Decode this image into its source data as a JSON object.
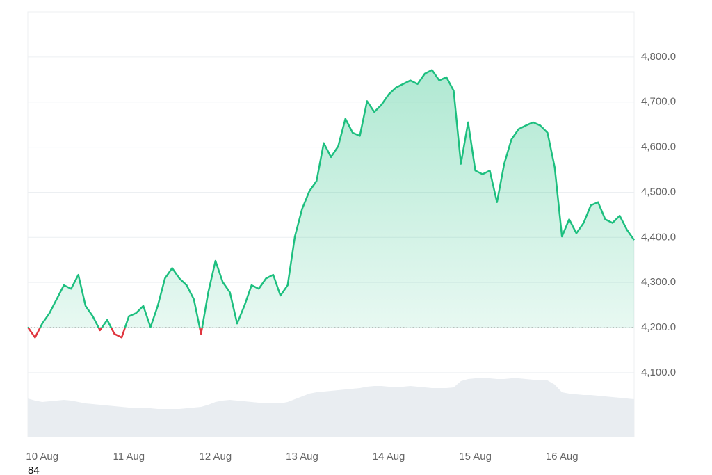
{
  "chart_data": {
    "type": "line",
    "annotation": "84",
    "categories": [
      null,
      null,
      "10 Aug",
      null,
      null,
      null,
      null,
      null,
      null,
      null,
      null,
      null,
      null,
      null,
      "11 Aug",
      null,
      null,
      null,
      null,
      null,
      null,
      null,
      null,
      null,
      null,
      null,
      "12 Aug",
      null,
      null,
      null,
      null,
      null,
      null,
      null,
      null,
      null,
      null,
      null,
      "13 Aug",
      null,
      null,
      null,
      null,
      null,
      null,
      null,
      null,
      null,
      null,
      null,
      "14 Aug",
      null,
      null,
      null,
      null,
      null,
      null,
      null,
      null,
      null,
      null,
      null,
      "15 Aug",
      null,
      null,
      null,
      null,
      null,
      null,
      null,
      null,
      null,
      null,
      null,
      "16 Aug",
      null,
      null,
      null,
      null,
      null,
      null,
      null,
      null,
      null,
      null
    ],
    "values": [
      4201,
      4178,
      4209,
      4232,
      4263,
      4294,
      4286,
      4317,
      4248,
      4225,
      4194,
      4217,
      4186,
      4178,
      4225,
      4232,
      4248,
      4201,
      4248,
      4309,
      4332,
      4309,
      4294,
      4263,
      4186,
      4278,
      4348,
      4301,
      4278,
      4209,
      4248,
      4294,
      4286,
      4309,
      4317,
      4271,
      4294,
      4402,
      4463,
      4502,
      4525,
      4609,
      4578,
      4602,
      4663,
      4632,
      4625,
      4702,
      4678,
      4694,
      4717,
      4732,
      4740,
      4748,
      4740,
      4763,
      4771,
      4748,
      4755,
      4725,
      4563,
      4655,
      4548,
      4540,
      4548,
      4478,
      4563,
      4617,
      4640,
      4648,
      4655,
      4648,
      4632,
      4555,
      4402,
      4440,
      4409,
      4432,
      4471,
      4478,
      4440,
      4432,
      4448,
      4417,
      4394
    ],
    "baseline": 4200,
    "up_color": "#1dbf7f",
    "down_color": "#e0363f",
    "volume": [
      55,
      52,
      50,
      51,
      52,
      53,
      52,
      50,
      48,
      47,
      46,
      45,
      44,
      43,
      42,
      42,
      41,
      41,
      40,
      40,
      40,
      40,
      41,
      42,
      43,
      46,
      50,
      52,
      53,
      52,
      51,
      50,
      49,
      48,
      48,
      48,
      50,
      54,
      58,
      62,
      64,
      65,
      66,
      67,
      68,
      69,
      70,
      72,
      73,
      73,
      72,
      71,
      72,
      73,
      72,
      71,
      70,
      70,
      70,
      71,
      80,
      83,
      84,
      84,
      84,
      83,
      83,
      84,
      84,
      83,
      82,
      82,
      81,
      75,
      64,
      62,
      61,
      60,
      60,
      59,
      58,
      57,
      56,
      55,
      54
    ],
    "volume_lim": [
      0,
      100
    ],
    "volume_color": "#e9edf1",
    "ylim": [
      3958,
      4900
    ],
    "yticks": [
      {
        "value": 4100,
        "label": "4,100.0"
      },
      {
        "value": 4200,
        "label": "4,200.0"
      },
      {
        "value": 4300,
        "label": "4,300.0"
      },
      {
        "value": 4400,
        "label": "4,400.0"
      },
      {
        "value": 4500,
        "label": "4,500.0"
      },
      {
        "value": 4600,
        "label": "4,600.0"
      },
      {
        "value": 4700,
        "label": "4,700.0"
      },
      {
        "value": 4800,
        "label": "4,800.0"
      }
    ],
    "grid": true
  }
}
